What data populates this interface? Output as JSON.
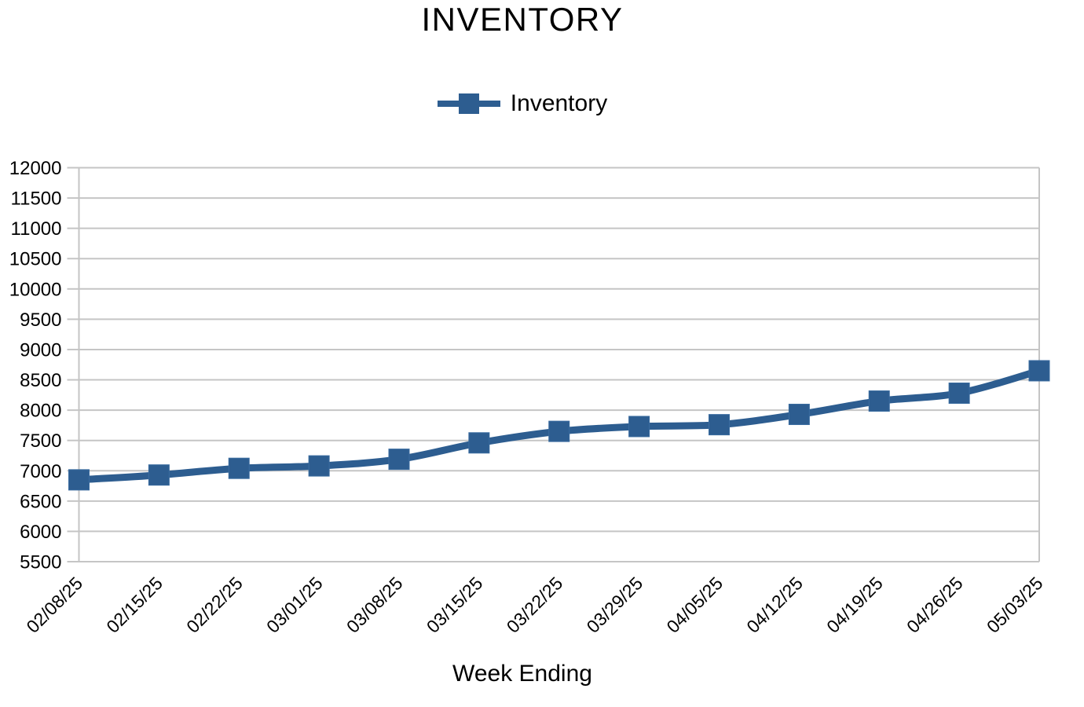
{
  "chart_data": {
    "type": "line",
    "title": "INVENTORY",
    "xlabel": "Week Ending",
    "ylabel": "",
    "legend_position": "top",
    "grid": "horizontal",
    "categories": [
      "02/08/25",
      "02/15/25",
      "02/22/25",
      "03/01/25",
      "03/08/25",
      "03/15/25",
      "03/22/25",
      "03/29/25",
      "04/05/25",
      "04/12/25",
      "04/19/25",
      "04/26/25",
      "05/03/25"
    ],
    "series": [
      {
        "name": "Inventory",
        "marker": "square",
        "color": "#2d5d90",
        "values": [
          6850,
          6930,
          7040,
          7080,
          7190,
          7460,
          7650,
          7730,
          7760,
          7930,
          8150,
          8280,
          8650
        ]
      }
    ],
    "ylim": [
      5500,
      12000
    ],
    "ytick_step": 500,
    "yticks": [
      5500,
      6000,
      6500,
      7000,
      7500,
      8000,
      8500,
      9000,
      9500,
      10000,
      10500,
      11000,
      11500,
      12000
    ],
    "colors": {
      "series": "#2d5d90",
      "grid": "#c5c5c5",
      "text": "#000000",
      "background": "#ffffff"
    }
  }
}
